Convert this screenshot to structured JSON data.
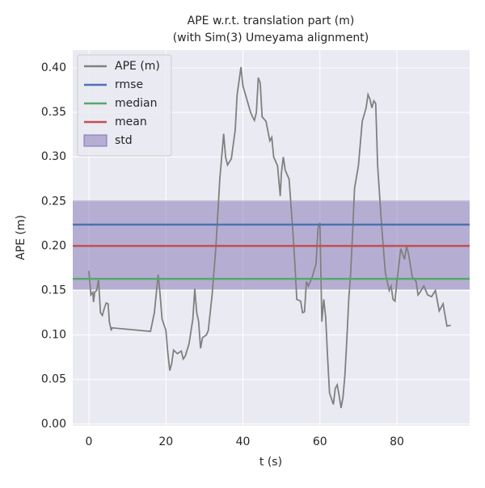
{
  "chart_data": {
    "type": "line",
    "title": [
      "APE w.r.t. translation part (m)",
      "(with Sim(3) Umeyama alignment)"
    ],
    "xlabel": "t (s)",
    "ylabel": "APE (m)",
    "x": [
      0,
      0.5,
      1,
      1.2,
      1.5,
      2,
      2.5,
      3,
      3.5,
      4,
      4.5,
      5,
      5.3,
      5.8,
      6,
      16,
      17,
      18,
      18.5,
      19,
      20,
      20.5,
      21,
      21.5,
      22,
      23,
      24,
      24.5,
      25,
      26,
      27,
      27.5,
      28,
      28.5,
      29,
      29.5,
      30.5,
      31,
      31.5,
      32,
      33,
      34,
      35,
      35.5,
      36,
      37,
      38,
      38.5,
      39.5,
      40,
      41,
      42,
      42.5,
      43,
      43.5,
      44,
      44.5,
      45,
      46,
      47,
      47.5,
      48,
      49,
      49.7,
      50,
      50.5,
      51,
      52,
      53,
      53.5,
      54,
      55,
      55.5,
      56,
      56.5,
      57,
      58,
      59,
      59.5,
      60,
      60.5,
      61,
      61.5,
      62,
      62.5,
      63.5,
      64,
      64.5,
      65,
      65.5,
      66,
      66.5,
      67,
      67.5,
      68,
      68.5,
      69,
      70,
      71,
      72,
      72.5,
      73,
      73.5,
      74,
      74.5,
      75,
      76,
      77,
      78,
      78.5,
      79,
      79.5,
      80,
      81,
      82,
      82.5,
      83,
      84,
      85,
      85.5,
      86,
      87,
      88,
      89,
      90,
      91,
      92,
      93,
      94
    ],
    "series": [
      {
        "name": "APE (m)",
        "color": "#808080",
        "values": [
          0.172,
          0.145,
          0.148,
          0.137,
          0.148,
          0.15,
          0.162,
          0.125,
          0.122,
          0.13,
          0.136,
          0.135,
          0.115,
          0.105,
          0.108,
          0.104,
          0.125,
          0.168,
          0.145,
          0.118,
          0.105,
          0.08,
          0.06,
          0.068,
          0.083,
          0.079,
          0.082,
          0.073,
          0.076,
          0.09,
          0.118,
          0.152,
          0.125,
          0.115,
          0.085,
          0.097,
          0.1,
          0.105,
          0.125,
          0.145,
          0.2,
          0.275,
          0.326,
          0.3,
          0.291,
          0.298,
          0.33,
          0.37,
          0.401,
          0.38,
          0.365,
          0.35,
          0.345,
          0.341,
          0.35,
          0.389,
          0.383,
          0.345,
          0.34,
          0.318,
          0.322,
          0.3,
          0.29,
          0.256,
          0.282,
          0.3,
          0.285,
          0.275,
          0.215,
          0.18,
          0.14,
          0.138,
          0.125,
          0.126,
          0.16,
          0.155,
          0.165,
          0.18,
          0.22,
          0.226,
          0.115,
          0.14,
          0.12,
          0.075,
          0.035,
          0.022,
          0.04,
          0.044,
          0.032,
          0.018,
          0.03,
          0.055,
          0.095,
          0.14,
          0.17,
          0.215,
          0.265,
          0.29,
          0.34,
          0.355,
          0.37,
          0.365,
          0.355,
          0.363,
          0.36,
          0.29,
          0.225,
          0.17,
          0.15,
          0.155,
          0.14,
          0.138,
          0.16,
          0.197,
          0.185,
          0.2,
          0.192,
          0.165,
          0.16,
          0.145,
          0.148,
          0.155,
          0.145,
          0.143,
          0.15,
          0.127,
          0.135,
          0.11,
          0.111
        ]
      }
    ],
    "hlines": [
      {
        "name": "rmse",
        "color": "#4c72b0",
        "value": 0.224
      },
      {
        "name": "median",
        "color": "#55a868",
        "value": 0.163
      },
      {
        "name": "mean",
        "color": "#c44e52",
        "value": 0.2
      }
    ],
    "band": {
      "name": "std",
      "color": "#8172b2",
      "range": [
        0.151,
        0.251
      ]
    },
    "xlim": [
      -4.2,
      98.9
    ],
    "ylim": [
      -0.002,
      0.42
    ],
    "xticks": [
      0,
      20,
      40,
      60,
      80
    ],
    "yticks": [
      {
        "value": 0,
        "label": "0.00"
      },
      0.05,
      {
        "value": 0.1,
        "label": "0.10"
      },
      0.15,
      {
        "value": 0.2,
        "label": "0.20"
      },
      0.25,
      {
        "value": 0.3,
        "label": "0.30"
      },
      0.35,
      {
        "value": 0.4,
        "label": "0.40"
      }
    ],
    "grid": true,
    "legend": "upper left"
  }
}
